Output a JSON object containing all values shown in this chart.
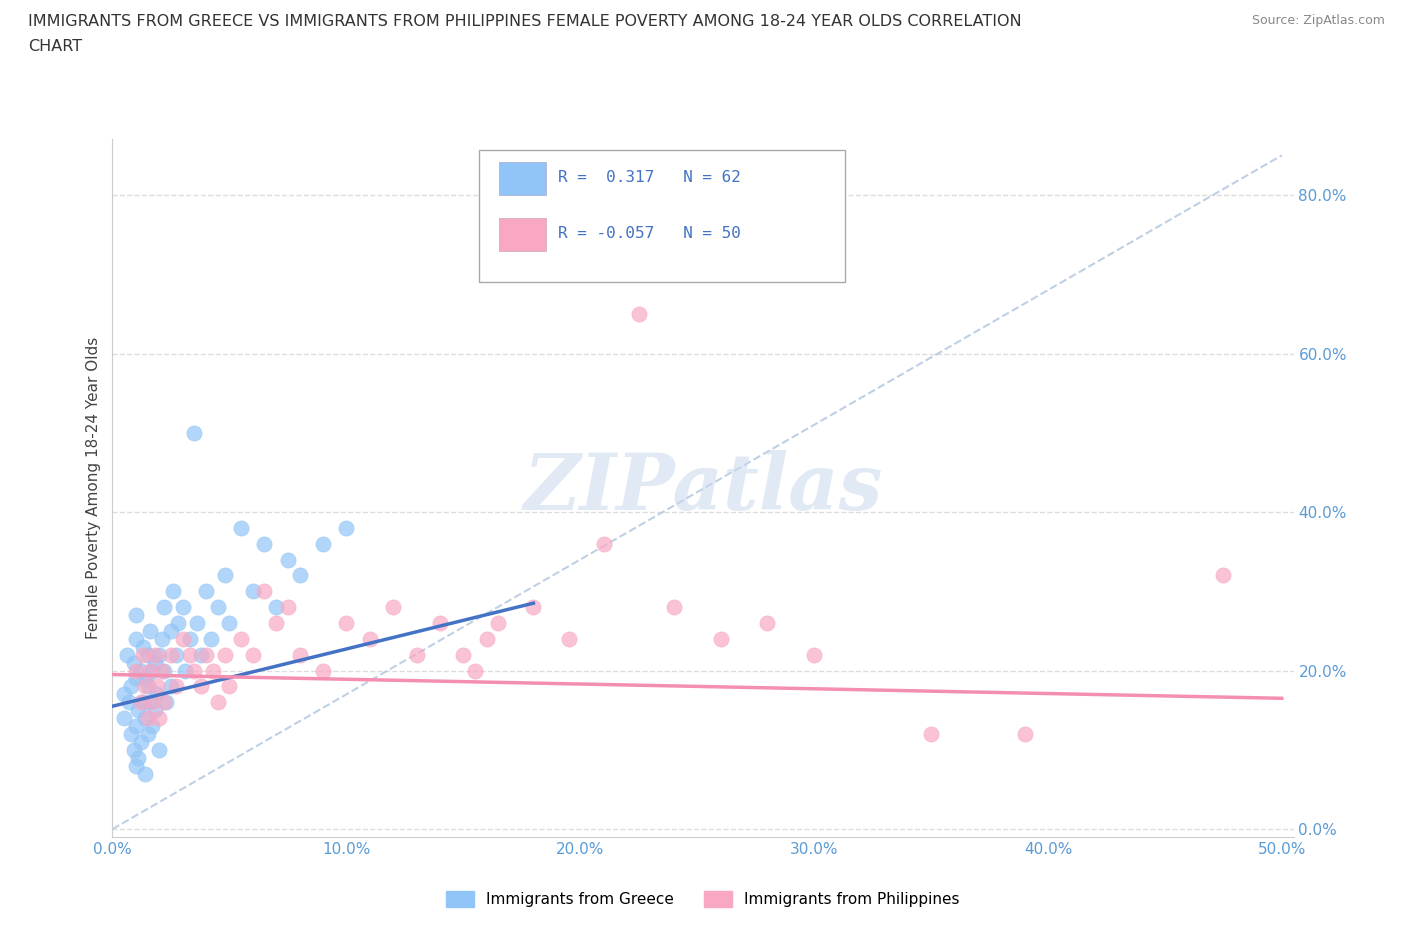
{
  "title_line1": "IMMIGRANTS FROM GREECE VS IMMIGRANTS FROM PHILIPPINES FEMALE POVERTY AMONG 18-24 YEAR OLDS CORRELATION",
  "title_line2": "CHART",
  "source": "Source: ZipAtlas.com",
  "ylabel": "Female Poverty Among 18-24 Year Olds",
  "xlim": [
    0.0,
    0.505
  ],
  "ylim": [
    -0.01,
    0.87
  ],
  "xticks": [
    0.0,
    0.1,
    0.2,
    0.3,
    0.4,
    0.5
  ],
  "yticks": [
    0.0,
    0.2,
    0.4,
    0.6,
    0.8
  ],
  "greece_R": 0.317,
  "greece_N": 62,
  "philippines_R": -0.057,
  "philippines_N": 50,
  "greece_color": "#92C5F7",
  "philippines_color": "#F9A8C4",
  "greece_line_color": "#4472C4",
  "philippines_line_color": "#F48FB1",
  "tick_color": "#5B9BD5",
  "background_color": "#FFFFFF",
  "greece_x": [
    0.005,
    0.005,
    0.006,
    0.007,
    0.008,
    0.008,
    0.009,
    0.009,
    0.01,
    0.01,
    0.01,
    0.01,
    0.01,
    0.011,
    0.011,
    0.012,
    0.012,
    0.013,
    0.013,
    0.014,
    0.014,
    0.014,
    0.015,
    0.015,
    0.015,
    0.016,
    0.016,
    0.017,
    0.017,
    0.018,
    0.018,
    0.019,
    0.02,
    0.02,
    0.021,
    0.022,
    0.022,
    0.023,
    0.025,
    0.025,
    0.026,
    0.027,
    0.028,
    0.03,
    0.031,
    0.033,
    0.035,
    0.036,
    0.038,
    0.04,
    0.042,
    0.045,
    0.048,
    0.05,
    0.055,
    0.06,
    0.065,
    0.07,
    0.075,
    0.08,
    0.09,
    0.1
  ],
  "greece_y": [
    0.14,
    0.17,
    0.22,
    0.16,
    0.12,
    0.18,
    0.1,
    0.21,
    0.08,
    0.13,
    0.19,
    0.24,
    0.27,
    0.15,
    0.09,
    0.2,
    0.11,
    0.16,
    0.23,
    0.14,
    0.19,
    0.07,
    0.18,
    0.22,
    0.12,
    0.16,
    0.25,
    0.13,
    0.2,
    0.15,
    0.21,
    0.17,
    0.22,
    0.1,
    0.24,
    0.2,
    0.28,
    0.16,
    0.25,
    0.18,
    0.3,
    0.22,
    0.26,
    0.28,
    0.2,
    0.24,
    0.5,
    0.26,
    0.22,
    0.3,
    0.24,
    0.28,
    0.32,
    0.26,
    0.38,
    0.3,
    0.36,
    0.28,
    0.34,
    0.32,
    0.36,
    0.38
  ],
  "philippines_x": [
    0.01,
    0.012,
    0.013,
    0.014,
    0.015,
    0.016,
    0.017,
    0.018,
    0.019,
    0.02,
    0.021,
    0.022,
    0.025,
    0.027,
    0.03,
    0.033,
    0.035,
    0.038,
    0.04,
    0.043,
    0.045,
    0.048,
    0.05,
    0.055,
    0.06,
    0.065,
    0.07,
    0.075,
    0.08,
    0.09,
    0.1,
    0.11,
    0.12,
    0.13,
    0.14,
    0.15,
    0.155,
    0.16,
    0.165,
    0.18,
    0.195,
    0.21,
    0.225,
    0.24,
    0.26,
    0.28,
    0.3,
    0.35,
    0.39,
    0.475
  ],
  "philippines_y": [
    0.2,
    0.16,
    0.22,
    0.18,
    0.14,
    0.2,
    0.16,
    0.22,
    0.18,
    0.14,
    0.2,
    0.16,
    0.22,
    0.18,
    0.24,
    0.22,
    0.2,
    0.18,
    0.22,
    0.2,
    0.16,
    0.22,
    0.18,
    0.24,
    0.22,
    0.3,
    0.26,
    0.28,
    0.22,
    0.2,
    0.26,
    0.24,
    0.28,
    0.22,
    0.26,
    0.22,
    0.2,
    0.24,
    0.26,
    0.28,
    0.24,
    0.36,
    0.65,
    0.28,
    0.24,
    0.26,
    0.22,
    0.12,
    0.12,
    0.32
  ]
}
